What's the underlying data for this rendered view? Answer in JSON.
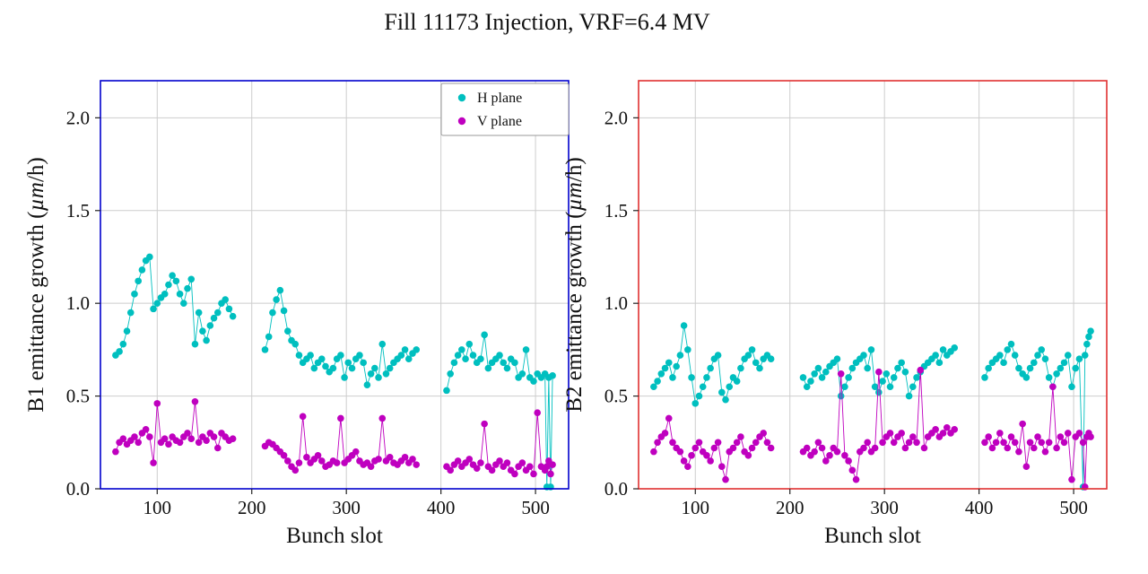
{
  "title": "Fill 11173 Injection, VRF=6.4 MV",
  "colors": {
    "h_plane": "#00bfbf",
    "v_plane": "#bf00bf",
    "grid": "#cdcdcd",
    "b1_spine": "#0000cd",
    "b2_spine": "#e03030"
  },
  "legend": {
    "items": [
      {
        "label": "H plane",
        "color": "#00bfbf"
      },
      {
        "label": "V plane",
        "color": "#bf00bf"
      }
    ]
  },
  "chart_data": [
    {
      "type": "scatter",
      "name": "B1",
      "xlabel": "Bunch slot",
      "ylabel": "B1 emittance growth (µm/h)",
      "xlim": [
        40,
        535
      ],
      "ylim": [
        0,
        2.2
      ],
      "xticks": [
        100,
        200,
        300,
        400,
        500
      ],
      "xtick_labels": [
        "100",
        "200",
        "300",
        "400",
        "500"
      ],
      "yticks": [
        0.0,
        0.5,
        1.0,
        1.5,
        2.0
      ],
      "ytick_labels": [
        "0.0",
        "0.5",
        "1.0",
        "1.5",
        "2.0"
      ],
      "spine_color": "#0000cd",
      "legend": true,
      "x_segments": [
        [
          56,
          60,
          64,
          68,
          72,
          76,
          80,
          84,
          88,
          92,
          96,
          100,
          104,
          108,
          112,
          116,
          120,
          124,
          128,
          132,
          136,
          140,
          144,
          148,
          152,
          156,
          160,
          164,
          168,
          172,
          176,
          180
        ],
        [
          214,
          218,
          222,
          226,
          230,
          234,
          238,
          242,
          246,
          250,
          254,
          258,
          262,
          266,
          270,
          274,
          278,
          282,
          286,
          290,
          294,
          298,
          302,
          306,
          310,
          314,
          318,
          322,
          326,
          330,
          334,
          338,
          342,
          346,
          350,
          354,
          358,
          362,
          366,
          370,
          374
        ],
        [
          406,
          410,
          414,
          418,
          422,
          426,
          430,
          434,
          438,
          442,
          446,
          450,
          454,
          458,
          462,
          466,
          470,
          474,
          478,
          482,
          486,
          490,
          494,
          498,
          502,
          506,
          510,
          512,
          514,
          516,
          518
        ]
      ],
      "series": [
        {
          "name": "H plane",
          "color": "#00bfbf",
          "y_segments": [
            [
              0.72,
              0.74,
              0.78,
              0.85,
              0.95,
              1.05,
              1.12,
              1.18,
              1.23,
              1.25,
              0.97,
              1.0,
              1.03,
              1.05,
              1.1,
              1.15,
              1.12,
              1.05,
              1.0,
              1.08,
              1.13,
              0.78,
              0.95,
              0.85,
              0.8,
              0.88,
              0.92,
              0.95,
              1.0,
              1.02,
              0.97,
              0.93
            ],
            [
              0.75,
              0.82,
              0.95,
              1.02,
              1.07,
              0.96,
              0.85,
              0.8,
              0.78,
              0.72,
              0.68,
              0.7,
              0.72,
              0.65,
              0.68,
              0.7,
              0.66,
              0.63,
              0.65,
              0.7,
              0.72,
              0.6,
              0.68,
              0.65,
              0.7,
              0.72,
              0.68,
              0.56,
              0.62,
              0.65,
              0.6,
              0.78,
              0.62,
              0.65,
              0.68,
              0.7,
              0.72,
              0.75,
              0.7,
              0.73,
              0.75
            ],
            [
              0.53,
              0.62,
              0.68,
              0.72,
              0.75,
              0.7,
              0.78,
              0.72,
              0.68,
              0.7,
              0.83,
              0.65,
              0.68,
              0.7,
              0.72,
              0.68,
              0.65,
              0.7,
              0.68,
              0.6,
              0.62,
              0.75,
              0.6,
              0.58,
              0.62,
              0.6,
              0.62,
              0.01,
              0.6,
              0.01,
              0.61
            ]
          ]
        },
        {
          "name": "V plane",
          "color": "#bf00bf",
          "y_segments": [
            [
              0.2,
              0.25,
              0.27,
              0.24,
              0.26,
              0.28,
              0.25,
              0.3,
              0.32,
              0.28,
              0.14,
              0.46,
              0.25,
              0.27,
              0.24,
              0.28,
              0.26,
              0.25,
              0.28,
              0.3,
              0.27,
              0.47,
              0.25,
              0.28,
              0.26,
              0.3,
              0.28,
              0.22,
              0.3,
              0.28,
              0.26,
              0.27
            ],
            [
              0.23,
              0.25,
              0.24,
              0.22,
              0.2,
              0.18,
              0.15,
              0.12,
              0.1,
              0.14,
              0.39,
              0.17,
              0.14,
              0.16,
              0.18,
              0.15,
              0.12,
              0.13,
              0.15,
              0.14,
              0.38,
              0.14,
              0.16,
              0.18,
              0.2,
              0.15,
              0.13,
              0.14,
              0.12,
              0.15,
              0.16,
              0.38,
              0.15,
              0.17,
              0.14,
              0.13,
              0.15,
              0.17,
              0.14,
              0.16,
              0.13
            ],
            [
              0.12,
              0.1,
              0.13,
              0.15,
              0.12,
              0.14,
              0.16,
              0.13,
              0.11,
              0.14,
              0.35,
              0.12,
              0.1,
              0.13,
              0.15,
              0.12,
              0.14,
              0.1,
              0.08,
              0.12,
              0.14,
              0.1,
              0.12,
              0.08,
              0.41,
              0.12,
              0.1,
              0.12,
              0.15,
              0.08,
              0.13
            ]
          ]
        }
      ]
    },
    {
      "type": "scatter",
      "name": "B2",
      "xlabel": "Bunch slot",
      "ylabel": "B2 emittance growth (µm/h)",
      "xlim": [
        40,
        535
      ],
      "ylim": [
        0,
        2.2
      ],
      "xticks": [
        100,
        200,
        300,
        400,
        500
      ],
      "xtick_labels": [
        "100",
        "200",
        "300",
        "400",
        "500"
      ],
      "yticks": [
        0.0,
        0.5,
        1.0,
        1.5,
        2.0
      ],
      "ytick_labels": [
        "0.0",
        "0.5",
        "1.0",
        "1.5",
        "2.0"
      ],
      "spine_color": "#e03030",
      "legend": false,
      "x_segments": [
        [
          56,
          60,
          64,
          68,
          72,
          76,
          80,
          84,
          88,
          92,
          96,
          100,
          104,
          108,
          112,
          116,
          120,
          124,
          128,
          132,
          136,
          140,
          144,
          148,
          152,
          156,
          160,
          164,
          168,
          172,
          176,
          180
        ],
        [
          214,
          218,
          222,
          226,
          230,
          234,
          238,
          242,
          246,
          250,
          254,
          258,
          262,
          266,
          270,
          274,
          278,
          282,
          286,
          290,
          294,
          298,
          302,
          306,
          310,
          314,
          318,
          322,
          326,
          330,
          334,
          338,
          342,
          346,
          350,
          354,
          358,
          362,
          366,
          370,
          374
        ],
        [
          406,
          410,
          414,
          418,
          422,
          426,
          430,
          434,
          438,
          442,
          446,
          450,
          454,
          458,
          462,
          466,
          470,
          474,
          478,
          482,
          486,
          490,
          494,
          498,
          502,
          506,
          510,
          512,
          514,
          516,
          518
        ]
      ],
      "series": [
        {
          "name": "H plane",
          "color": "#00bfbf",
          "y_segments": [
            [
              0.55,
              0.58,
              0.62,
              0.65,
              0.68,
              0.6,
              0.66,
              0.72,
              0.88,
              0.75,
              0.6,
              0.46,
              0.5,
              0.55,
              0.6,
              0.65,
              0.7,
              0.72,
              0.52,
              0.48,
              0.55,
              0.6,
              0.58,
              0.65,
              0.7,
              0.72,
              0.75,
              0.68,
              0.65,
              0.7,
              0.72,
              0.7
            ],
            [
              0.6,
              0.55,
              0.58,
              0.62,
              0.65,
              0.6,
              0.63,
              0.66,
              0.68,
              0.7,
              0.5,
              0.55,
              0.6,
              0.65,
              0.68,
              0.7,
              0.72,
              0.65,
              0.75,
              0.55,
              0.52,
              0.58,
              0.62,
              0.55,
              0.6,
              0.65,
              0.68,
              0.63,
              0.5,
              0.55,
              0.6,
              0.63,
              0.66,
              0.68,
              0.7,
              0.72,
              0.68,
              0.75,
              0.72,
              0.74,
              0.76
            ],
            [
              0.6,
              0.65,
              0.68,
              0.7,
              0.72,
              0.68,
              0.75,
              0.78,
              0.72,
              0.65,
              0.62,
              0.6,
              0.65,
              0.68,
              0.72,
              0.75,
              0.7,
              0.6,
              0.55,
              0.62,
              0.65,
              0.68,
              0.72,
              0.55,
              0.65,
              0.7,
              0.01,
              0.72,
              0.78,
              0.82,
              0.85
            ]
          ]
        },
        {
          "name": "V plane",
          "color": "#bf00bf",
          "y_segments": [
            [
              0.2,
              0.25,
              0.28,
              0.3,
              0.38,
              0.25,
              0.22,
              0.2,
              0.15,
              0.12,
              0.18,
              0.22,
              0.25,
              0.2,
              0.18,
              0.15,
              0.22,
              0.25,
              0.12,
              0.05,
              0.2,
              0.22,
              0.25,
              0.28,
              0.2,
              0.18,
              0.22,
              0.25,
              0.28,
              0.3,
              0.25,
              0.22
            ],
            [
              0.2,
              0.22,
              0.18,
              0.2,
              0.25,
              0.22,
              0.15,
              0.18,
              0.22,
              0.2,
              0.62,
              0.18,
              0.15,
              0.1,
              0.05,
              0.2,
              0.22,
              0.25,
              0.2,
              0.22,
              0.63,
              0.25,
              0.28,
              0.3,
              0.25,
              0.28,
              0.3,
              0.22,
              0.25,
              0.28,
              0.25,
              0.64,
              0.22,
              0.28,
              0.3,
              0.32,
              0.28,
              0.3,
              0.33,
              0.3,
              0.32
            ],
            [
              0.25,
              0.28,
              0.22,
              0.25,
              0.3,
              0.25,
              0.22,
              0.28,
              0.25,
              0.2,
              0.35,
              0.12,
              0.25,
              0.22,
              0.28,
              0.25,
              0.2,
              0.25,
              0.55,
              0.22,
              0.28,
              0.25,
              0.3,
              0.05,
              0.28,
              0.3,
              0.25,
              0.01,
              0.28,
              0.3,
              0.28
            ]
          ]
        }
      ]
    }
  ]
}
